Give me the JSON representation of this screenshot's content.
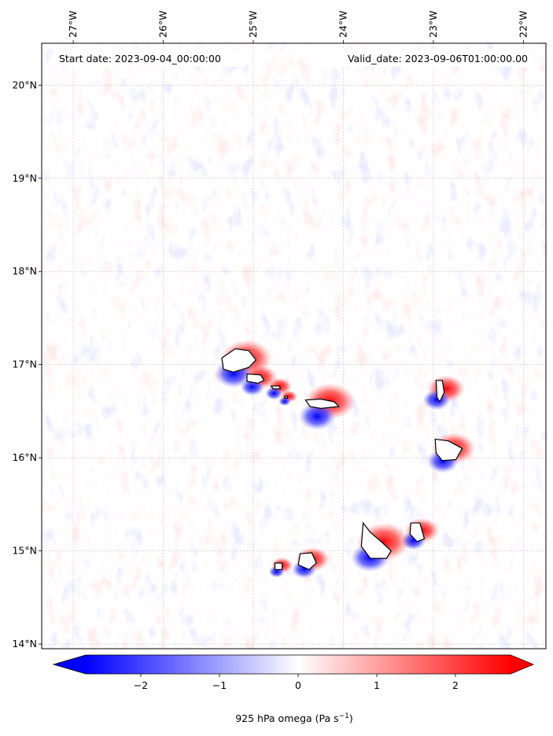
{
  "map": {
    "lon_range": [
      -27.35,
      -21.75
    ],
    "lat_range": [
      13.95,
      20.45
    ],
    "lon_ticks": [
      {
        "value": -27,
        "label": "27°W"
      },
      {
        "value": -26,
        "label": "26°W"
      },
      {
        "value": -25,
        "label": "25°W"
      },
      {
        "value": -24,
        "label": "24°W"
      },
      {
        "value": -23,
        "label": "23°W"
      },
      {
        "value": -22,
        "label": "22°W"
      }
    ],
    "lat_ticks": [
      {
        "value": 14,
        "label": "14°N"
      },
      {
        "value": 15,
        "label": "15°N"
      },
      {
        "value": 16,
        "label": "16°N"
      },
      {
        "value": 17,
        "label": "17°N"
      },
      {
        "value": 18,
        "label": "18°N"
      },
      {
        "value": 19,
        "label": "19°N"
      },
      {
        "value": 20,
        "label": "20°N"
      }
    ],
    "gridlines": true,
    "start_date": "Start date: 2023-09-04_00:00:00",
    "valid_date": "Valid_date: 2023-09-06T01:00:00.00",
    "colors": {
      "negative": "#0000ff",
      "zero": "#ffffff",
      "positive": "#ff0000",
      "coastline": "#000000"
    },
    "islands": [
      {
        "name": "Santo Antão",
        "outline": [
          [
            -25.35,
            17.07
          ],
          [
            -25.2,
            17.17
          ],
          [
            -25.05,
            17.15
          ],
          [
            -24.97,
            17.05
          ],
          [
            -25.05,
            16.97
          ],
          [
            -25.22,
            16.92
          ],
          [
            -25.33,
            16.95
          ]
        ]
      },
      {
        "name": "São Vicente",
        "outline": [
          [
            -25.07,
            16.9
          ],
          [
            -24.92,
            16.89
          ],
          [
            -24.88,
            16.83
          ],
          [
            -24.95,
            16.8
          ],
          [
            -25.07,
            16.82
          ]
        ]
      },
      {
        "name": "Santa Luzia",
        "outline": [
          [
            -24.8,
            16.77
          ],
          [
            -24.71,
            16.77
          ],
          [
            -24.7,
            16.74
          ],
          [
            -24.78,
            16.74
          ]
        ]
      },
      {
        "name": "Branco",
        "outline": [
          [
            -24.65,
            16.66
          ],
          [
            -24.62,
            16.66
          ],
          [
            -24.62,
            16.64
          ],
          [
            -24.65,
            16.64
          ]
        ]
      },
      {
        "name": "São Nicolau",
        "outline": [
          [
            -24.42,
            16.62
          ],
          [
            -24.25,
            16.63
          ],
          [
            -24.1,
            16.6
          ],
          [
            -24.05,
            16.55
          ],
          [
            -24.25,
            16.53
          ],
          [
            -24.37,
            16.55
          ]
        ]
      },
      {
        "name": "Sal",
        "outline": [
          [
            -22.97,
            16.83
          ],
          [
            -22.9,
            16.83
          ],
          [
            -22.88,
            16.7
          ],
          [
            -22.93,
            16.6
          ],
          [
            -22.96,
            16.65
          ]
        ]
      },
      {
        "name": "Boa Vista",
        "outline": [
          [
            -22.98,
            16.2
          ],
          [
            -22.83,
            16.18
          ],
          [
            -22.68,
            16.1
          ],
          [
            -22.75,
            15.98
          ],
          [
            -22.9,
            15.97
          ],
          [
            -22.97,
            16.05
          ]
        ]
      },
      {
        "name": "Maio",
        "outline": [
          [
            -23.25,
            15.3
          ],
          [
            -23.15,
            15.3
          ],
          [
            -23.1,
            15.13
          ],
          [
            -23.18,
            15.1
          ],
          [
            -23.26,
            15.18
          ]
        ]
      },
      {
        "name": "Santiago",
        "outline": [
          [
            -23.78,
            15.3
          ],
          [
            -23.7,
            15.2
          ],
          [
            -23.58,
            15.1
          ],
          [
            -23.47,
            15.0
          ],
          [
            -23.52,
            14.92
          ],
          [
            -23.7,
            14.92
          ],
          [
            -23.8,
            15.05
          ]
        ]
      },
      {
        "name": "Fogo",
        "outline": [
          [
            -24.48,
            14.97
          ],
          [
            -24.35,
            14.98
          ],
          [
            -24.3,
            14.87
          ],
          [
            -24.38,
            14.8
          ],
          [
            -24.5,
            14.85
          ]
        ]
      },
      {
        "name": "Brava",
        "outline": [
          [
            -24.76,
            14.87
          ],
          [
            -24.68,
            14.87
          ],
          [
            -24.68,
            14.8
          ],
          [
            -24.76,
            14.8
          ]
        ]
      }
    ]
  },
  "colorbar": {
    "range": [
      -2.7,
      2.7
    ],
    "ticks": [
      {
        "value": -2,
        "label": "−2"
      },
      {
        "value": -1,
        "label": "−1"
      },
      {
        "value": 0,
        "label": "0"
      },
      {
        "value": 1,
        "label": "1"
      },
      {
        "value": 2,
        "label": "2"
      }
    ],
    "label_prefix": "925 hPa omega (Pa s",
    "label_exponent": "−1",
    "label_suffix": ")",
    "extend": "both"
  }
}
